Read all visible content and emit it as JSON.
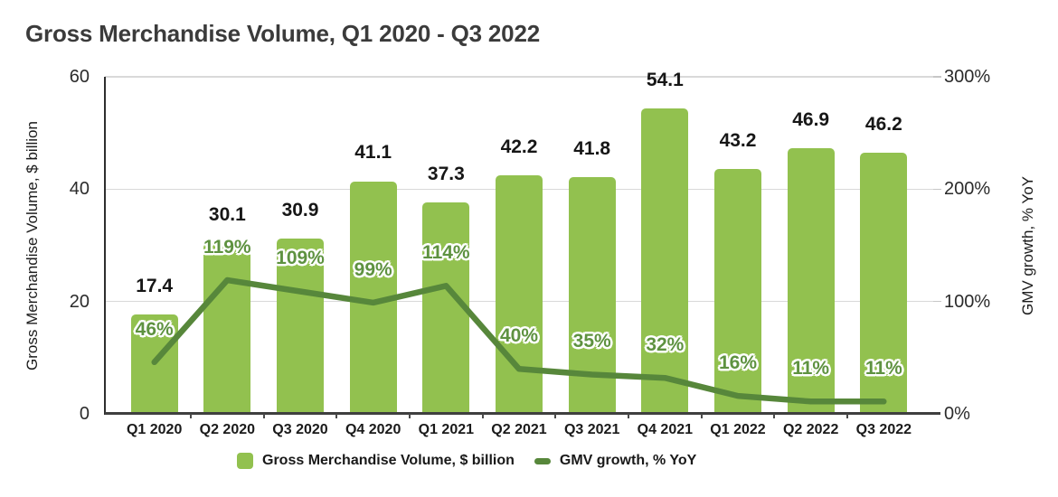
{
  "chart_data": {
    "type": "bar",
    "title": "Gross Merchandise Volume, Q1 2020 - Q3 2022",
    "categories": [
      "Q1 2020",
      "Q2 2020",
      "Q3 2020",
      "Q4 2020",
      "Q1 2021",
      "Q2 2021",
      "Q3 2021",
      "Q4 2021",
      "Q1 2022",
      "Q2 2022",
      "Q3 2022"
    ],
    "series": [
      {
        "name": "Gross Merchandise Volume, $ billion",
        "type": "bar",
        "axis": "left",
        "values": [
          17.4,
          30.1,
          30.9,
          41.1,
          37.3,
          42.2,
          41.8,
          54.1,
          43.2,
          46.9,
          46.2
        ],
        "labels": [
          "17.4",
          "30.1",
          "30.9",
          "41.1",
          "37.3",
          "42.2",
          "41.8",
          "54.1",
          "43.2",
          "46.9",
          "46.2"
        ],
        "color": "#92c14f"
      },
      {
        "name": "GMV growth, % YoY",
        "type": "line",
        "axis": "right",
        "values": [
          46,
          119,
          109,
          99,
          114,
          40,
          35,
          32,
          16,
          11,
          11
        ],
        "labels": [
          "46%",
          "119%",
          "109%",
          "99%",
          "114%",
          "40%",
          "35%",
          "32%",
          "16%",
          "11%",
          "11%"
        ],
        "color": "#57873b",
        "label_color": "#5e9240"
      }
    ],
    "left_axis": {
      "label": "Gross Merchandise Volume, $ billion",
      "range": [
        0,
        60
      ],
      "ticks": [
        {
          "value": 0,
          "label": "0"
        },
        {
          "value": 20,
          "label": "20"
        },
        {
          "value": 40,
          "label": "40"
        },
        {
          "value": 60,
          "label": "60"
        }
      ]
    },
    "right_axis": {
      "label": "GMV growth, % YoY",
      "range": [
        0,
        300
      ],
      "ticks": [
        {
          "value": 0,
          "label": "0%"
        },
        {
          "value": 100,
          "label": "100%"
        },
        {
          "value": 200,
          "label": "200%"
        },
        {
          "value": 300,
          "label": "300%"
        }
      ]
    },
    "legend": [
      {
        "label": "Gross Merchandise Volume, $ billion",
        "swatch": "square",
        "color": "#92c14f"
      },
      {
        "label": "GMV growth, % YoY",
        "swatch": "dash",
        "color": "#57873b"
      }
    ],
    "grid": "horizontal",
    "legend_position": "bottom"
  }
}
